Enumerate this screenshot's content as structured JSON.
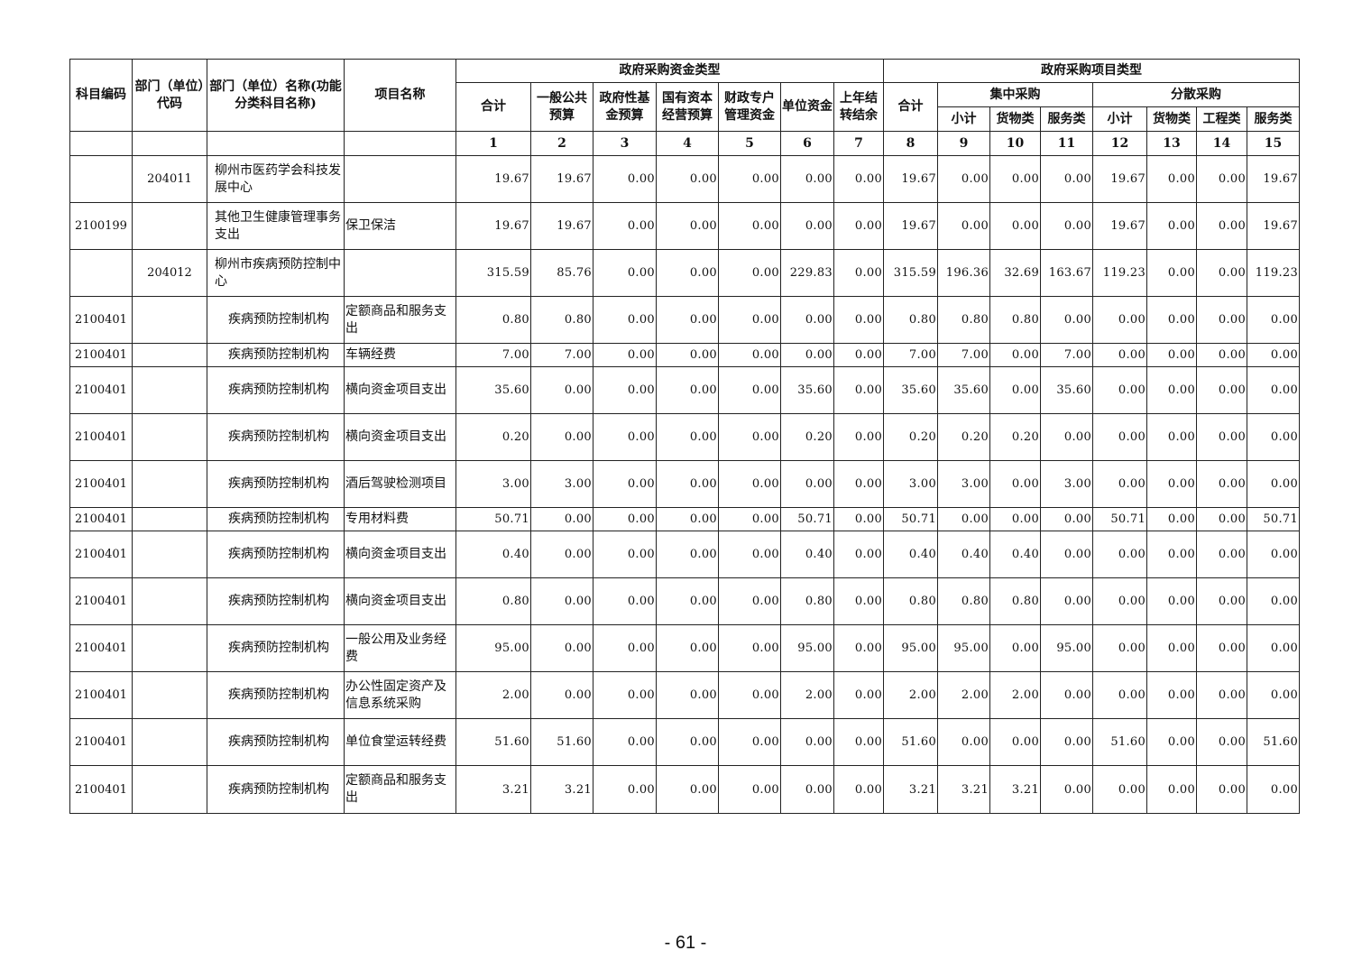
{
  "header": {
    "subject_code": "科目编码",
    "dept_code": "部门（单位）代码",
    "dept_name": "部门（单位）名称(功能分类科目名称)",
    "project_name": "项目名称",
    "fund_type": "政府采购资金类型",
    "project_type": "政府采购项目类型",
    "fund_cols": [
      "合计",
      "一般公共预算",
      "政府性基金预算",
      "国有资本经营预算",
      "财政专户管理资金",
      "单位资金",
      "上年结转结余"
    ],
    "proj_total": "合计",
    "centralized": "集中采购",
    "decentralized": "分散采购",
    "sub_cols": [
      "小计",
      "货物类",
      "服务类",
      "小计",
      "货物类",
      "工程类",
      "服务类"
    ],
    "col_numbers": [
      "1",
      "2",
      "3",
      "4",
      "5",
      "6",
      "7",
      "8",
      "9",
      "10",
      "11",
      "12",
      "13",
      "14",
      "15"
    ]
  },
  "rows": [
    {
      "code": "",
      "dept": "204011",
      "name": "柳州市医药学会科技发展中心",
      "project": "",
      "values": [
        "19.67",
        "19.67",
        "0.00",
        "0.00",
        "0.00",
        "0.00",
        "0.00",
        "19.67",
        "0.00",
        "0.00",
        "0.00",
        "19.67",
        "0.00",
        "0.00",
        "19.67"
      ]
    },
    {
      "code": "2100199",
      "dept": "",
      "name": "其他卫生健康管理事务支出",
      "project": "保卫保洁",
      "values": [
        "19.67",
        "19.67",
        "0.00",
        "0.00",
        "0.00",
        "0.00",
        "0.00",
        "19.67",
        "0.00",
        "0.00",
        "0.00",
        "19.67",
        "0.00",
        "0.00",
        "19.67"
      ]
    },
    {
      "code": "",
      "dept": "204012",
      "name": "柳州市疾病预防控制中心",
      "project": "",
      "values": [
        "315.59",
        "85.76",
        "0.00",
        "0.00",
        "0.00",
        "229.83",
        "0.00",
        "315.59",
        "196.36",
        "32.69",
        "163.67",
        "119.23",
        "0.00",
        "0.00",
        "119.23"
      ]
    },
    {
      "code": "2100401",
      "dept": "",
      "name": "疾病预防控制机构",
      "project": "定额商品和服务支出",
      "values": [
        "0.80",
        "0.80",
        "0.00",
        "0.00",
        "0.00",
        "0.00",
        "0.00",
        "0.80",
        "0.80",
        "0.80",
        "0.00",
        "0.00",
        "0.00",
        "0.00",
        "0.00"
      ]
    },
    {
      "code": "2100401",
      "dept": "",
      "name": "疾病预防控制机构",
      "project": "车辆经费",
      "values": [
        "7.00",
        "7.00",
        "0.00",
        "0.00",
        "0.00",
        "0.00",
        "0.00",
        "7.00",
        "7.00",
        "0.00",
        "7.00",
        "0.00",
        "0.00",
        "0.00",
        "0.00"
      ]
    },
    {
      "code": "2100401",
      "dept": "",
      "name": "疾病预防控制机构",
      "project": "横向资金项目支出",
      "values": [
        "35.60",
        "0.00",
        "0.00",
        "0.00",
        "0.00",
        "35.60",
        "0.00",
        "35.60",
        "35.60",
        "0.00",
        "35.60",
        "0.00",
        "0.00",
        "0.00",
        "0.00"
      ]
    },
    {
      "code": "2100401",
      "dept": "",
      "name": "疾病预防控制机构",
      "project": "横向资金项目支出",
      "values": [
        "0.20",
        "0.00",
        "0.00",
        "0.00",
        "0.00",
        "0.20",
        "0.00",
        "0.20",
        "0.20",
        "0.20",
        "0.00",
        "0.00",
        "0.00",
        "0.00",
        "0.00"
      ]
    },
    {
      "code": "2100401",
      "dept": "",
      "name": "疾病预防控制机构",
      "project": "酒后驾驶检测项目",
      "values": [
        "3.00",
        "3.00",
        "0.00",
        "0.00",
        "0.00",
        "0.00",
        "0.00",
        "3.00",
        "3.00",
        "0.00",
        "3.00",
        "0.00",
        "0.00",
        "0.00",
        "0.00"
      ]
    },
    {
      "code": "2100401",
      "dept": "",
      "name": "疾病预防控制机构",
      "project": "专用材料费",
      "values": [
        "50.71",
        "0.00",
        "0.00",
        "0.00",
        "0.00",
        "50.71",
        "0.00",
        "50.71",
        "0.00",
        "0.00",
        "0.00",
        "50.71",
        "0.00",
        "0.00",
        "50.71"
      ]
    },
    {
      "code": "2100401",
      "dept": "",
      "name": "疾病预防控制机构",
      "project": "横向资金项目支出",
      "values": [
        "0.40",
        "0.00",
        "0.00",
        "0.00",
        "0.00",
        "0.40",
        "0.00",
        "0.40",
        "0.40",
        "0.40",
        "0.00",
        "0.00",
        "0.00",
        "0.00",
        "0.00"
      ]
    },
    {
      "code": "2100401",
      "dept": "",
      "name": "疾病预防控制机构",
      "project": "横向资金项目支出",
      "values": [
        "0.80",
        "0.00",
        "0.00",
        "0.00",
        "0.00",
        "0.80",
        "0.00",
        "0.80",
        "0.80",
        "0.80",
        "0.00",
        "0.00",
        "0.00",
        "0.00",
        "0.00"
      ]
    },
    {
      "code": "2100401",
      "dept": "",
      "name": "疾病预防控制机构",
      "project": "一般公用及业务经费",
      "values": [
        "95.00",
        "0.00",
        "0.00",
        "0.00",
        "0.00",
        "95.00",
        "0.00",
        "95.00",
        "95.00",
        "0.00",
        "95.00",
        "0.00",
        "0.00",
        "0.00",
        "0.00"
      ]
    },
    {
      "code": "2100401",
      "dept": "",
      "name": "疾病预防控制机构",
      "project": "办公性固定资产及信息系统采购",
      "values": [
        "2.00",
        "0.00",
        "0.00",
        "0.00",
        "0.00",
        "2.00",
        "0.00",
        "2.00",
        "2.00",
        "2.00",
        "0.00",
        "0.00",
        "0.00",
        "0.00",
        "0.00"
      ]
    },
    {
      "code": "2100401",
      "dept": "",
      "name": "疾病预防控制机构",
      "project": "单位食堂运转经费",
      "values": [
        "51.60",
        "51.60",
        "0.00",
        "0.00",
        "0.00",
        "0.00",
        "0.00",
        "51.60",
        "0.00",
        "0.00",
        "0.00",
        "51.60",
        "0.00",
        "0.00",
        "51.60"
      ]
    },
    {
      "code": "2100401",
      "dept": "",
      "name": "疾病预防控制机构",
      "project": "定额商品和服务支出",
      "values": [
        "3.21",
        "3.21",
        "0.00",
        "0.00",
        "0.00",
        "0.00",
        "0.00",
        "3.21",
        "3.21",
        "3.21",
        "0.00",
        "0.00",
        "0.00",
        "0.00",
        "0.00"
      ]
    }
  ],
  "page_number": "- 61 -"
}
